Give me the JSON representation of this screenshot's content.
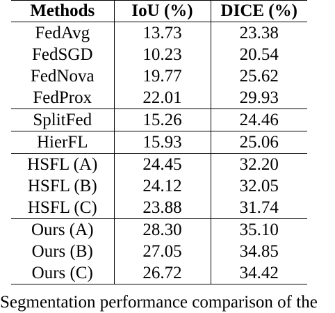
{
  "table": {
    "headers": [
      "Methods",
      "IoU (%)",
      "DICE (%)"
    ],
    "rows": [
      [
        "FedAvg",
        "13.73",
        "23.38"
      ],
      [
        "FedSGD",
        "10.23",
        "20.54"
      ],
      [
        "FedNova",
        "19.77",
        "25.62"
      ],
      [
        "FedProx",
        "22.01",
        "29.93"
      ],
      [
        "SplitFed",
        "15.26",
        "24.46"
      ],
      [
        "HierFL",
        "15.93",
        "25.06"
      ],
      [
        "HSFL (A)",
        "24.45",
        "32.20"
      ],
      [
        "HSFL (B)",
        "24.12",
        "32.05"
      ],
      [
        "HSFL (C)",
        "23.88",
        "31.74"
      ],
      [
        "Ours (A)",
        "28.30",
        "35.10"
      ],
      [
        "Ours (B)",
        "27.05",
        "34.85"
      ],
      [
        "Ours (C)",
        "26.72",
        "34.42"
      ]
    ]
  },
  "caption": "Segmentation performance comparison of the"
}
